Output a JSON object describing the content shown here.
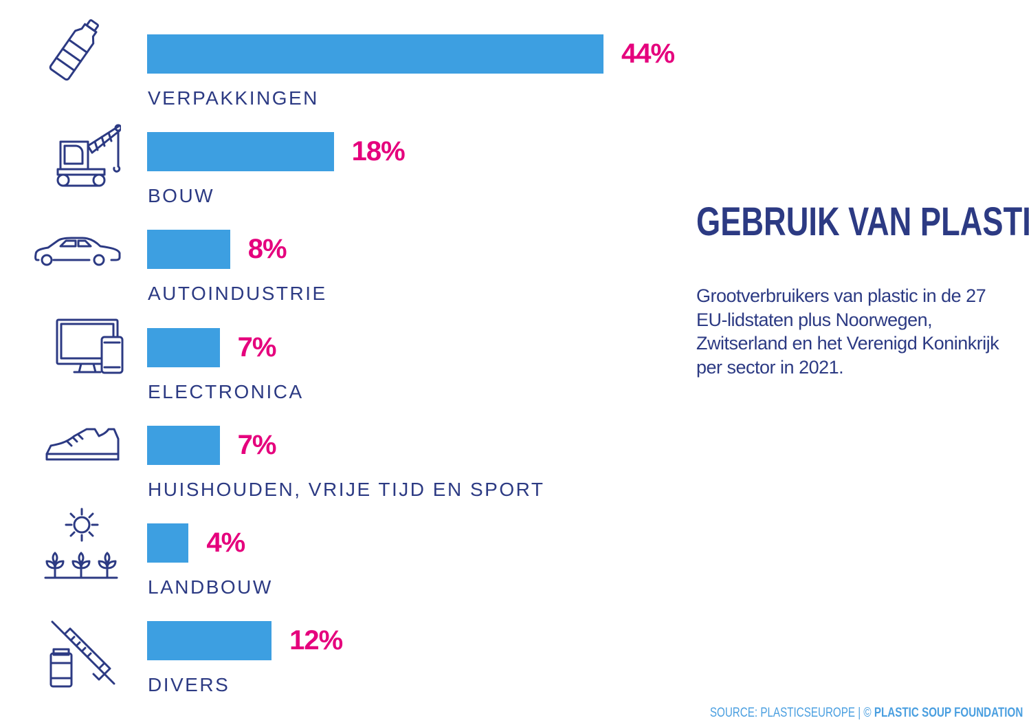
{
  "chart_data": {
    "type": "bar",
    "orientation": "horizontal",
    "title": "GEBRUIK VAN PLASTIC",
    "subtitle": "Grootverbruikers van plastic in de 27 EU-lidstaten plus Noorwegen, Zwitserland en het Verenigd Koninkrijk per sector in 2021.",
    "categories": [
      "VERPAKKINGEN",
      "BOUW",
      "AUTOINDUSTRIE",
      "ELECTRONICA",
      "HUISHOUDEN, VRIJE TIJD EN SPORT",
      "LANDBOUW",
      "DIVERS"
    ],
    "values": [
      44,
      18,
      8,
      7,
      7,
      4,
      12
    ],
    "value_labels": [
      "44%",
      "18%",
      "8%",
      "7%",
      "7%",
      "4%",
      "12%"
    ],
    "icons": [
      "bottle-icon",
      "crane-icon",
      "car-icon",
      "computer-phone-icon",
      "sneaker-icon",
      "sun-plants-icon",
      "syringe-vial-icon"
    ],
    "unit": "%",
    "grid": false,
    "colors": {
      "bar": "#3d9fe1",
      "value_label": "#e5007d",
      "text": "#2c3a83"
    }
  },
  "source": {
    "prefix": "SOURCE: PLASTICSEUROPE | © ",
    "brand": "PLASTIC SOUP FOUNDATION"
  }
}
